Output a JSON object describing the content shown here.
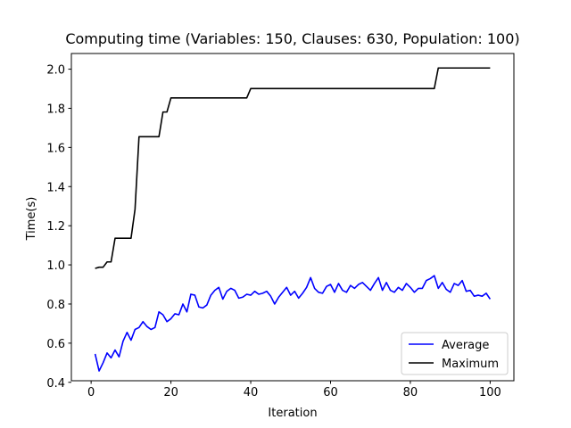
{
  "chart_data": {
    "type": "line",
    "title": "Computing time (Variables: 150, Clauses: 630, Population: 100)",
    "xlabel": "Iteration",
    "ylabel": "Time(s)",
    "xlim": [
      -4.95,
      105.95
    ],
    "ylim": [
      0.408,
      2.08
    ],
    "xticks": [
      0,
      20,
      40,
      60,
      80,
      100
    ],
    "yticks": [
      0.4,
      0.6,
      0.8,
      1.0,
      1.2,
      1.4,
      1.6,
      1.8,
      2.0
    ],
    "xtick_labels": [
      "0",
      "20",
      "40",
      "60",
      "80",
      "100"
    ],
    "ytick_labels": [
      "0.4",
      "0.6",
      "0.8",
      "1.0",
      "1.2",
      "1.4",
      "1.6",
      "1.8",
      "2.0"
    ],
    "grid": false,
    "legend_position": "lower right",
    "x": [
      1,
      2,
      3,
      4,
      5,
      6,
      7,
      8,
      9,
      10,
      11,
      12,
      13,
      14,
      15,
      16,
      17,
      18,
      19,
      20,
      21,
      22,
      23,
      24,
      25,
      26,
      27,
      28,
      29,
      30,
      31,
      32,
      33,
      34,
      35,
      36,
      37,
      38,
      39,
      40,
      41,
      42,
      43,
      44,
      45,
      46,
      47,
      48,
      49,
      50,
      51,
      52,
      53,
      54,
      55,
      56,
      57,
      58,
      59,
      60,
      61,
      62,
      63,
      64,
      65,
      66,
      67,
      68,
      69,
      70,
      71,
      72,
      73,
      74,
      75,
      76,
      77,
      78,
      79,
      80,
      81,
      82,
      83,
      84,
      85,
      86,
      87,
      88,
      89,
      90,
      91,
      92,
      93,
      94,
      95,
      96,
      97,
      98,
      99,
      100
    ],
    "series": [
      {
        "name": "Average",
        "color": "#0000ff",
        "values": [
          0.545,
          0.458,
          0.5,
          0.55,
          0.525,
          0.565,
          0.53,
          0.61,
          0.655,
          0.615,
          0.67,
          0.68,
          0.71,
          0.685,
          0.67,
          0.68,
          0.76,
          0.745,
          0.71,
          0.725,
          0.75,
          0.745,
          0.8,
          0.76,
          0.85,
          0.845,
          0.785,
          0.78,
          0.795,
          0.845,
          0.87,
          0.885,
          0.825,
          0.865,
          0.88,
          0.87,
          0.83,
          0.835,
          0.85,
          0.845,
          0.865,
          0.85,
          0.855,
          0.865,
          0.84,
          0.8,
          0.835,
          0.86,
          0.885,
          0.845,
          0.865,
          0.83,
          0.855,
          0.885,
          0.935,
          0.88,
          0.86,
          0.855,
          0.89,
          0.9,
          0.86,
          0.905,
          0.87,
          0.86,
          0.895,
          0.88,
          0.9,
          0.91,
          0.89,
          0.87,
          0.905,
          0.935,
          0.87,
          0.91,
          0.87,
          0.86,
          0.885,
          0.87,
          0.905,
          0.885,
          0.86,
          0.88,
          0.88,
          0.92,
          0.93,
          0.945,
          0.88,
          0.91,
          0.875,
          0.86,
          0.905,
          0.895,
          0.92,
          0.865,
          0.87,
          0.84,
          0.845,
          0.84,
          0.855,
          0.825
        ]
      },
      {
        "name": "Maximum",
        "color": "#000000",
        "values": [
          0.982,
          0.988,
          0.988,
          1.015,
          1.015,
          1.136,
          1.136,
          1.136,
          1.136,
          1.136,
          1.284,
          1.655,
          1.655,
          1.655,
          1.655,
          1.655,
          1.655,
          1.781,
          1.781,
          1.853,
          1.853,
          1.853,
          1.853,
          1.853,
          1.853,
          1.853,
          1.853,
          1.853,
          1.853,
          1.853,
          1.853,
          1.853,
          1.853,
          1.853,
          1.853,
          1.853,
          1.853,
          1.853,
          1.853,
          1.901,
          1.901,
          1.901,
          1.901,
          1.901,
          1.901,
          1.901,
          1.901,
          1.901,
          1.901,
          1.901,
          1.901,
          1.901,
          1.901,
          1.901,
          1.901,
          1.901,
          1.901,
          1.901,
          1.901,
          1.901,
          1.901,
          1.901,
          1.901,
          1.901,
          1.901,
          1.901,
          1.901,
          1.901,
          1.901,
          1.901,
          1.901,
          1.901,
          1.901,
          1.901,
          1.901,
          1.901,
          1.901,
          1.901,
          1.901,
          1.901,
          1.901,
          1.901,
          1.901,
          1.901,
          1.901,
          1.901,
          2.006,
          2.006,
          2.006,
          2.006,
          2.006,
          2.006,
          2.006,
          2.006,
          2.006,
          2.006,
          2.006,
          2.006,
          2.006,
          2.006
        ]
      }
    ]
  }
}
